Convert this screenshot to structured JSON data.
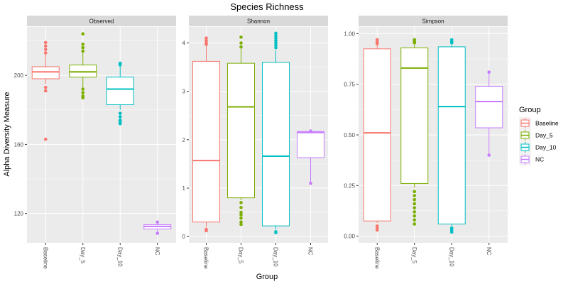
{
  "chart_data": {
    "type": "boxplot",
    "title": "Species Richness",
    "xlabel": "Group",
    "ylabel": "Alpha Diversity Measure",
    "categories": [
      "Baseline",
      "Day_5",
      "Day_10",
      "NC"
    ],
    "colors": {
      "Baseline": "#F8766D",
      "Day_5": "#7CAE00",
      "Day_10": "#00BFC4",
      "NC": "#C77CFF"
    },
    "legend": {
      "title": "Group",
      "placement": "right",
      "entries": [
        "Baseline",
        "Day_5",
        "Day_10",
        "NC"
      ]
    },
    "panels": [
      {
        "name": "Observed",
        "ylim": [
          103,
          228
        ],
        "yticks": [
          120,
          160,
          200
        ],
        "boxes": [
          {
            "group": "Baseline",
            "q1": 198,
            "median": 202,
            "q3": 205,
            "whisker_low": 195,
            "whisker_high": 212,
            "points": [
              219,
              217,
              215,
              213,
              193,
              191,
              163
            ]
          },
          {
            "group": "Day_5",
            "q1": 199,
            "median": 202,
            "q3": 206,
            "whisker_low": 193,
            "whisker_high": 213,
            "points": [
              224,
              218,
              216,
              214,
              192,
              190,
              188,
              187
            ]
          },
          {
            "group": "Day_10",
            "q1": 183,
            "median": 192,
            "q3": 199,
            "whisker_low": 180,
            "whisker_high": 205,
            "points": [
              207,
              206,
              178,
              176,
              174,
              173,
              172
            ]
          },
          {
            "group": "NC",
            "q1": 111,
            "median": 112.5,
            "q3": 113.5,
            "whisker_low": 108.5,
            "whisker_high": 115,
            "points": []
          }
        ]
      },
      {
        "name": "Shannon",
        "ylim": [
          -0.13,
          4.33
        ],
        "yticks": [
          0,
          1,
          2,
          3,
          4
        ],
        "boxes": [
          {
            "group": "Baseline",
            "q1": 0.3,
            "median": 1.57,
            "q3": 3.62,
            "whisker_low": 0.2,
            "whisker_high": 3.95,
            "points": [
              4.1,
              4.05,
              4.0,
              3.97,
              0.15,
              0.12
            ]
          },
          {
            "group": "Day_5",
            "q1": 0.8,
            "median": 2.68,
            "q3": 3.58,
            "whisker_low": 0.75,
            "whisker_high": 3.9,
            "points": [
              4.12,
              4.0,
              3.92,
              0.7,
              0.6,
              0.5,
              0.45,
              0.38,
              0.3,
              0.25
            ]
          },
          {
            "group": "Day_10",
            "q1": 0.22,
            "median": 1.66,
            "q3": 3.6,
            "whisker_low": 0.15,
            "whisker_high": 3.85,
            "points": [
              4.2,
              4.15,
              4.1,
              4.05,
              4.0,
              3.95,
              3.9,
              0.1,
              0.08
            ]
          },
          {
            "group": "NC",
            "q1": 1.63,
            "median": 2.15,
            "q3": 2.17,
            "whisker_low": 1.1,
            "whisker_high": 2.18,
            "points": []
          }
        ]
      },
      {
        "name": "Simpson",
        "ylim": [
          -0.033,
          1.033
        ],
        "yticks": [
          0.0,
          0.25,
          0.5,
          0.75,
          1.0
        ],
        "ytick_labels": [
          "0.00",
          "0.25",
          "0.50",
          "0.75",
          "1.00"
        ],
        "boxes": [
          {
            "group": "Baseline",
            "q1": 0.075,
            "median": 0.51,
            "q3": 0.925,
            "whisker_low": 0.065,
            "whisker_high": 0.945,
            "points": [
              0.97,
              0.96,
              0.955,
              0.95,
              0.05,
              0.04,
              0.03
            ]
          },
          {
            "group": "Day_5",
            "q1": 0.26,
            "median": 0.83,
            "q3": 0.93,
            "whisker_low": 0.24,
            "whisker_high": 0.95,
            "points": [
              0.97,
              0.96,
              0.955,
              0.22,
              0.2,
              0.18,
              0.16,
              0.14,
              0.12,
              0.1,
              0.08,
              0.06
            ]
          },
          {
            "group": "Day_10",
            "q1": 0.06,
            "median": 0.64,
            "q3": 0.935,
            "whisker_low": 0.05,
            "whisker_high": 0.95,
            "points": [
              0.97,
              0.96,
              0.955,
              0.04,
              0.03,
              0.02
            ]
          },
          {
            "group": "NC",
            "q1": 0.535,
            "median": 0.665,
            "q3": 0.74,
            "whisker_low": 0.4,
            "whisker_high": 0.81,
            "points": []
          }
        ]
      }
    ]
  }
}
